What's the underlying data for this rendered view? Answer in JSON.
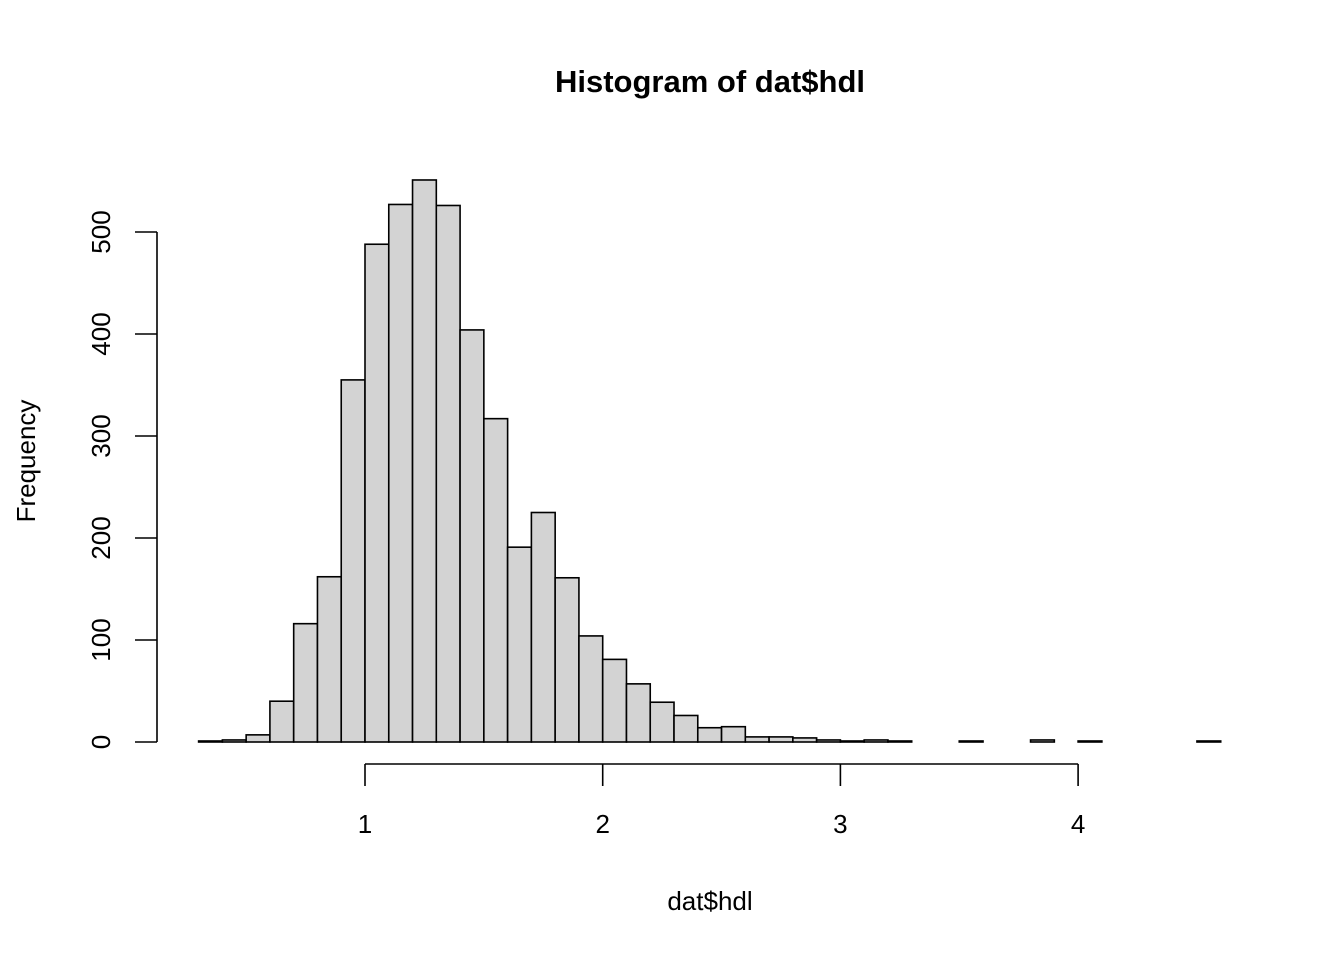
{
  "chart_data": {
    "type": "bar",
    "title": "Histogram of dat$hdl",
    "xlabel": "dat$hdl",
    "ylabel": "Frequency",
    "bin_start": 0.3,
    "bin_width": 0.1,
    "values": [
      1,
      2,
      7,
      40,
      116,
      162,
      355,
      488,
      527,
      551,
      526,
      404,
      317,
      191,
      225,
      161,
      104,
      81,
      57,
      39,
      26,
      14,
      15,
      5,
      5,
      4,
      2,
      1,
      2,
      1,
      0,
      0,
      1,
      0,
      0,
      2,
      0,
      1,
      0,
      0,
      0,
      0,
      1
    ],
    "xlim": [
      0.3,
      4.6
    ],
    "ylim": [
      0,
      551
    ],
    "x_ticks": [
      1,
      2,
      3,
      4
    ],
    "x_tick_labels": [
      "1",
      "2",
      "3",
      "4"
    ],
    "y_ticks": [
      0,
      100,
      200,
      300,
      400,
      500
    ],
    "y_tick_labels": [
      "0",
      "100",
      "200",
      "300",
      "400",
      "500"
    ],
    "bar_fill": "#d3d3d3",
    "bar_stroke": "#000000",
    "grid": false
  }
}
